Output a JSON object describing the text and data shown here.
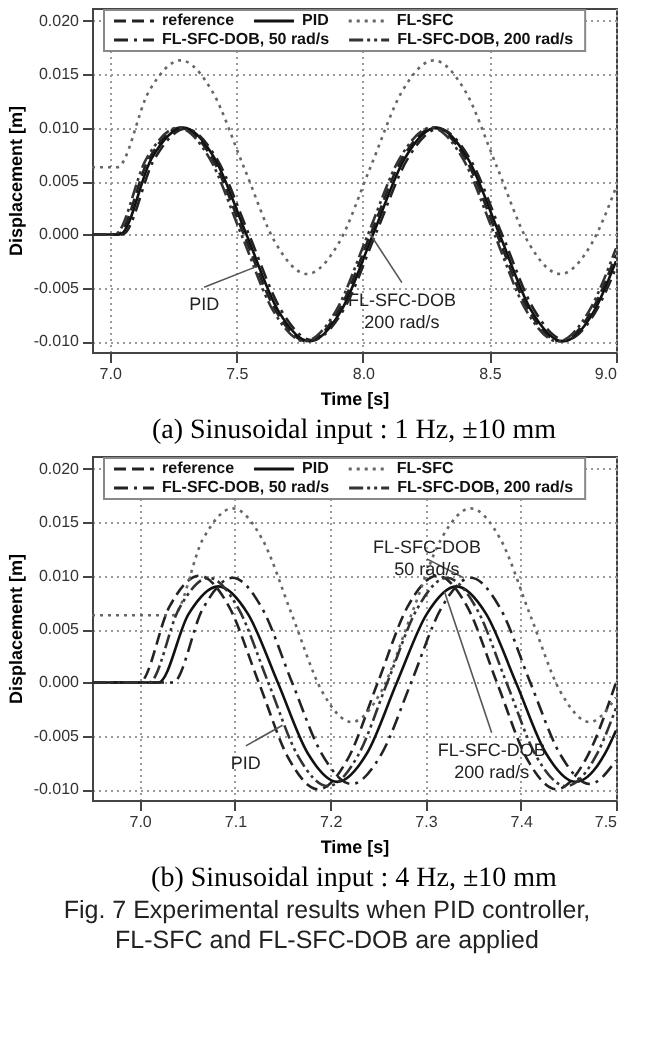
{
  "chart_data": [
    {
      "type": "line",
      "title": "(a) Sinusoidal input : 1 Hz, ±10 mm",
      "xlabel": "Time [s]",
      "ylabel": "Displacement [m]",
      "xlim": [
        6.93,
        9.0
      ],
      "ylim": [
        -0.011,
        0.0212
      ],
      "xticks": [
        {
          "value": 7,
          "label": "7.0"
        },
        {
          "value": 7.5,
          "label": "7.5"
        },
        {
          "value": 8,
          "label": "8.0"
        },
        {
          "value": 8.5,
          "label": "8.5"
        },
        {
          "value": 9,
          "label": "9.0"
        }
      ],
      "yticks": [
        {
          "value": -0.01,
          "label": "-0.010"
        },
        {
          "value": -0.005,
          "label": "-0.005"
        },
        {
          "value": 0,
          "label": "0.000"
        },
        {
          "value": 0.005,
          "label": "0.005"
        },
        {
          "value": 0.01,
          "label": "0.010"
        },
        {
          "value": 0.015,
          "label": "0.015"
        },
        {
          "value": 0.02,
          "label": "0.020"
        }
      ],
      "grid": true,
      "legend": "top",
      "series": [
        {
          "name": "reference",
          "color": "#222222",
          "line_style": "dashed",
          "x": [
            6.93,
            7.03,
            7.155,
            7.28,
            7.405,
            7.53,
            7.655,
            7.78,
            7.905,
            8.03,
            8.155,
            8.28,
            8.405,
            8.53,
            8.655,
            8.78,
            8.905,
            9.0
          ],
          "values": [
            0,
            0,
            0.0071,
            0.01,
            0.0071,
            0,
            -0.0071,
            -0.01,
            -0.0071,
            0,
            0.0071,
            0.01,
            0.0071,
            0,
            -0.0071,
            -0.01,
            -0.0071,
            -0.0019
          ]
        },
        {
          "name": "PID",
          "color": "#111111",
          "line_style": "solid",
          "x": [
            6.93,
            7.04,
            7.165,
            7.29,
            7.415,
            7.54,
            7.665,
            7.79,
            7.915,
            8.04,
            8.165,
            8.29,
            8.415,
            8.54,
            8.665,
            8.79,
            8.915,
            9.0
          ],
          "values": [
            0,
            0,
            0.0071,
            0.01,
            0.0071,
            0,
            -0.0071,
            -0.01,
            -0.0071,
            0,
            0.0071,
            0.01,
            0.0071,
            0,
            -0.0071,
            -0.01,
            -0.0071,
            -0.0025
          ]
        },
        {
          "name": "FL-SFC",
          "color": "#666666",
          "line_style": "dotted",
          "x": [
            6.93,
            7.03,
            7.155,
            7.28,
            7.405,
            7.53,
            7.655,
            7.78,
            7.905,
            8.03,
            8.155,
            8.28,
            8.405,
            8.53,
            8.655,
            8.78,
            8.905,
            9.0
          ],
          "values": [
            0.0063,
            0.0063,
            0.0134,
            0.0163,
            0.0134,
            0.0063,
            -0.0008,
            -0.0037,
            -0.0008,
            0.0063,
            0.0134,
            0.0163,
            0.0134,
            0.0063,
            -0.0008,
            -0.0037,
            -0.0008,
            0.0044
          ]
        },
        {
          "name": "FL-SFC-DOB, 50 rad/s",
          "color": "#222222",
          "line_style": "dashdot",
          "x": [
            6.93,
            7.05,
            7.175,
            7.3,
            7.425,
            7.55,
            7.675,
            7.8,
            7.925,
            8.05,
            8.175,
            8.3,
            8.425,
            8.55,
            8.675,
            8.8,
            8.925,
            9.0
          ],
          "values": [
            0,
            0,
            0.007,
            0.0099,
            0.007,
            0,
            -0.007,
            -0.0099,
            -0.007,
            0,
            0.007,
            0.0099,
            0.007,
            0,
            -0.007,
            -0.0099,
            -0.007,
            -0.0031
          ]
        },
        {
          "name": "FL-SFC-DOB, 200 rad/s",
          "color": "#333333",
          "line_style": "dashdotdot",
          "x": [
            6.93,
            7.02,
            7.145,
            7.27,
            7.395,
            7.52,
            7.645,
            7.77,
            7.895,
            8.02,
            8.145,
            8.27,
            8.395,
            8.52,
            8.645,
            8.77,
            8.895,
            9.0
          ],
          "values": [
            0,
            0,
            0.0071,
            0.01,
            0.0071,
            0,
            -0.0071,
            -0.01,
            -0.0071,
            0,
            0.0071,
            0.01,
            0.0071,
            0,
            -0.0071,
            -0.01,
            -0.0071,
            -0.0013
          ]
        }
      ],
      "annotations": [
        {
          "text": "PID",
          "x": 7.58,
          "y": -0.003
        },
        {
          "text": "FL-SFC-DOB\n200 rad/s",
          "x": 8.03,
          "y": 0.0
        }
      ]
    },
    {
      "type": "line",
      "title": "(b) Sinusoidal input : 4 Hz, ±10 mm",
      "xlabel": "Time [s]",
      "ylabel": "Displacement [m]",
      "xlim": [
        6.95,
        7.5
      ],
      "ylim": [
        -0.011,
        0.0212
      ],
      "xticks": [
        {
          "value": 7,
          "label": "7.0"
        },
        7.1,
        7.2,
        7.3,
        7.4,
        7.5
      ],
      "yticks": [
        {
          "value": -0.01,
          "label": "-0.010"
        },
        {
          "value": -0.005,
          "label": "-0.005"
        },
        {
          "value": 0,
          "label": "0.000"
        },
        {
          "value": 0.005,
          "label": "0.005"
        },
        {
          "value": 0.01,
          "label": "0.010"
        },
        {
          "value": 0.015,
          "label": "0.015"
        },
        {
          "value": 0.02,
          "label": "0.020"
        }
      ],
      "grid": true,
      "legend": "top",
      "series": [
        {
          "name": "reference",
          "color": "#222222",
          "line_style": "dashed",
          "x": [
            6.95,
            7.0,
            7.0313,
            7.0625,
            7.0938,
            7.125,
            7.1563,
            7.1875,
            7.2188,
            7.25,
            7.2813,
            7.3125,
            7.3438,
            7.375,
            7.4063,
            7.4375,
            7.4688,
            7.5
          ],
          "values": [
            0,
            0,
            0.0071,
            0.01,
            0.0071,
            0,
            -0.0071,
            -0.01,
            -0.0071,
            0,
            0.0071,
            0.01,
            0.0071,
            0,
            -0.0071,
            -0.01,
            -0.0071,
            0
          ]
        },
        {
          "name": "PID",
          "color": "#111111",
          "line_style": "solid",
          "x": [
            6.95,
            7.02,
            7.0513,
            7.0825,
            7.1138,
            7.145,
            7.1763,
            7.2075,
            7.2388,
            7.27,
            7.3013,
            7.3325,
            7.3638,
            7.395,
            7.4263,
            7.4575,
            7.4888,
            7.5
          ],
          "values": [
            0,
            0,
            0.0064,
            0.009,
            0.0064,
            0,
            -0.0066,
            -0.0093,
            -0.0066,
            0,
            0.0064,
            0.009,
            0.0064,
            0,
            -0.0066,
            -0.0093,
            -0.0066,
            -0.0045
          ]
        },
        {
          "name": "FL-SFC",
          "color": "#666666",
          "line_style": "dotted",
          "x": [
            6.95,
            7.035,
            7.0663,
            7.0975,
            7.1288,
            7.16,
            7.1913,
            7.2225,
            7.2538,
            7.285,
            7.3163,
            7.3475,
            7.3788,
            7.41,
            7.4413,
            7.4725,
            7.5
          ],
          "values": [
            0.0063,
            0.0063,
            0.0134,
            0.0163,
            0.0134,
            0.0063,
            -0.0008,
            -0.0037,
            -0.0008,
            0.0063,
            0.0134,
            0.0163,
            0.0134,
            0.0063,
            -0.0008,
            -0.0037,
            -0.0014
          ]
        },
        {
          "name": "FL-SFC-DOB, 50 rad/s",
          "color": "#222222",
          "line_style": "dashdot",
          "x": [
            6.95,
            7.035,
            7.0663,
            7.0975,
            7.1288,
            7.16,
            7.1913,
            7.2225,
            7.2538,
            7.285,
            7.3163,
            7.3475,
            7.3788,
            7.41,
            7.4413,
            7.4725,
            7.5
          ],
          "values": [
            0,
            0,
            0.0069,
            0.0098,
            0.0069,
            0,
            -0.0067,
            -0.0095,
            -0.0067,
            0,
            0.0069,
            0.0098,
            0.0069,
            0,
            -0.0067,
            -0.0095,
            -0.0073
          ]
        },
        {
          "name": "FL-SFC-DOB, 200 rad/s",
          "color": "#333333",
          "line_style": "dashdotdot",
          "x": [
            6.95,
            7.01,
            7.0413,
            7.0725,
            7.1038,
            7.135,
            7.1663,
            7.1975,
            7.2288,
            7.26,
            7.2913,
            7.3225,
            7.3538,
            7.385,
            7.4163,
            7.4475,
            7.4788,
            7.5
          ],
          "values": [
            0,
            0,
            0.0069,
            0.0098,
            0.0069,
            0,
            -0.0069,
            -0.0097,
            -0.0069,
            0,
            0.0069,
            0.0098,
            0.0069,
            0,
            -0.0069,
            -0.0097,
            -0.0069,
            -0.0024
          ]
        }
      ],
      "annotations": [
        {
          "text": "FL-SFC-DOB\n50 rad/s",
          "x": 7.34,
          "y": 0.0098
        },
        {
          "text": "PID",
          "x": 7.15,
          "y": -0.004
        },
        {
          "text": "FL-SFC-DOB\n200 rad/s",
          "x": 7.32,
          "y": 0.0085
        },
        "Fig. 7 Experimental results when PID controller,",
        "FL-SFC and FL-SFC-DOB are applied"
      ]
    }
  ]
}
